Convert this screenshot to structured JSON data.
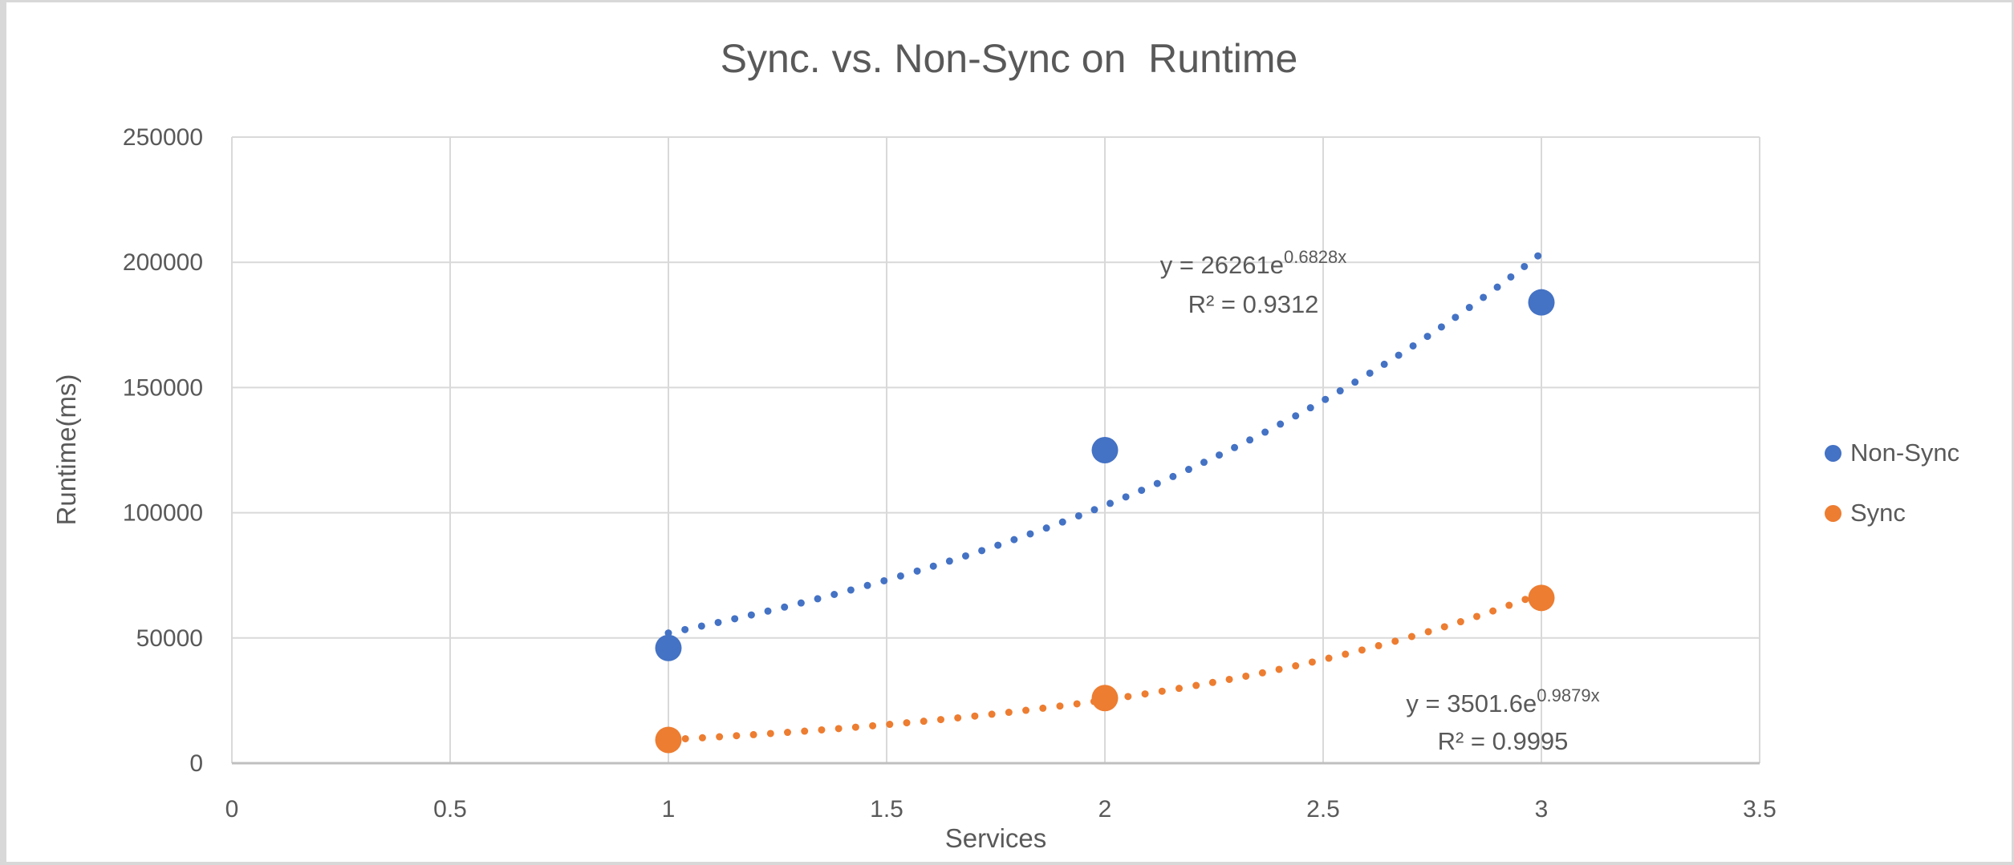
{
  "window": {
    "background": "#FFFFFF",
    "border_color": "#D8D8D8"
  },
  "chart_data": {
    "type": "scatter",
    "title": "Sync. vs. Non-Sync on  Runtime",
    "xlabel": "Services",
    "ylabel": "Runtime(ms)",
    "xlim": [
      0,
      3.5
    ],
    "ylim": [
      0,
      250000
    ],
    "x_ticks": [
      0,
      0.5,
      1,
      1.5,
      2,
      2.5,
      3,
      3.5
    ],
    "y_ticks": [
      0,
      50000,
      100000,
      150000,
      200000,
      250000
    ],
    "grid": true,
    "legend_position": "right-middle",
    "text_color": "#595959",
    "grid_color": "#D9D9D9",
    "axis_line_color": "#BFBFBF",
    "series": [
      {
        "name": "Non-Sync",
        "color": "#4472C4",
        "points": [
          {
            "x": 1,
            "y": 46000
          },
          {
            "x": 2,
            "y": 125000
          },
          {
            "x": 3,
            "y": 184000
          }
        ],
        "trendline": {
          "type": "exponential",
          "a": 26261,
          "b": 0.6828,
          "x_range": [
            1,
            3
          ],
          "equation_base": "y = 26261e",
          "equation_exponent": "0.6828x",
          "r_squared": "R² = 0.9312"
        }
      },
      {
        "name": "Sync",
        "color": "#ED7D31",
        "points": [
          {
            "x": 1,
            "y": 9300
          },
          {
            "x": 2,
            "y": 26000
          },
          {
            "x": 3,
            "y": 66000
          }
        ],
        "trendline": {
          "type": "exponential",
          "a": 3501.6,
          "b": 0.9879,
          "x_range": [
            1,
            3
          ],
          "equation_base": "y = 3501.6e",
          "equation_exponent": "0.9879x",
          "r_squared": "R² = 0.9995"
        }
      }
    ]
  }
}
